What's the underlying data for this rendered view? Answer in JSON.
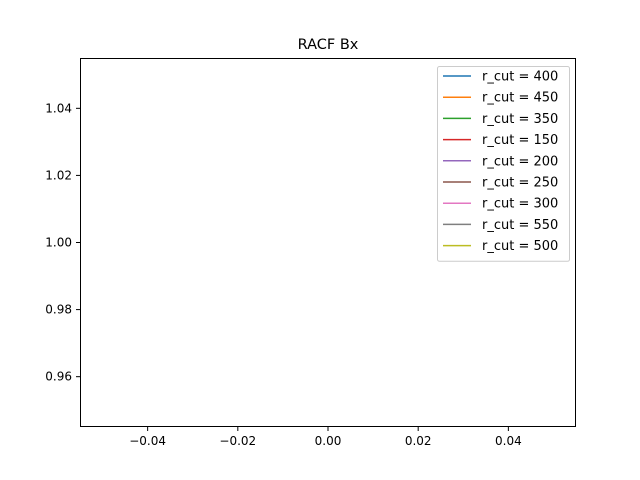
{
  "chart_data": {
    "type": "line",
    "title": "RACF Bx",
    "xlabel": "",
    "ylabel": "",
    "xlim": [
      -0.055,
      0.055
    ],
    "ylim": [
      0.945,
      1.055
    ],
    "x_ticks": [
      -0.04,
      -0.02,
      0.0,
      0.02,
      0.04
    ],
    "x_tick_labels": [
      "−0.04",
      "−0.02",
      "0.00",
      "0.02",
      "0.04"
    ],
    "y_ticks": [
      0.96,
      0.98,
      1.0,
      1.02,
      1.04
    ],
    "y_tick_labels": [
      "0.96",
      "0.98",
      "1.00",
      "1.02",
      "1.04"
    ],
    "grid": false,
    "legend_position": "top-right",
    "series": [
      {
        "name": "r_cut = 400",
        "color": "#1f77b4",
        "x": [],
        "y": []
      },
      {
        "name": "r_cut = 450",
        "color": "#ff7f0e",
        "x": [],
        "y": []
      },
      {
        "name": "r_cut = 350",
        "color": "#2ca02c",
        "x": [],
        "y": []
      },
      {
        "name": "r_cut = 150",
        "color": "#d62728",
        "x": [],
        "y": []
      },
      {
        "name": "r_cut = 200",
        "color": "#9467bd",
        "x": [],
        "y": []
      },
      {
        "name": "r_cut = 250",
        "color": "#8c564b",
        "x": [],
        "y": []
      },
      {
        "name": "r_cut = 300",
        "color": "#e377c2",
        "x": [],
        "y": []
      },
      {
        "name": "r_cut = 550",
        "color": "#7f7f7f",
        "x": [],
        "y": []
      },
      {
        "name": "r_cut = 500",
        "color": "#bcbd22",
        "x": [],
        "y": []
      }
    ]
  }
}
